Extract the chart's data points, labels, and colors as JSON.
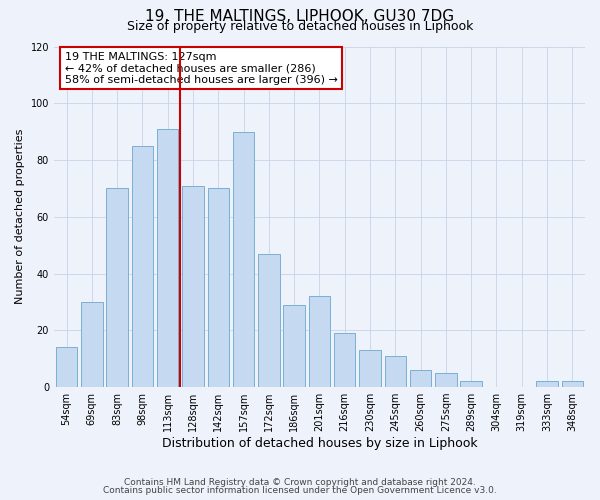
{
  "title": "19, THE MALTINGS, LIPHOOK, GU30 7DG",
  "subtitle": "Size of property relative to detached houses in Liphook",
  "xlabel": "Distribution of detached houses by size in Liphook",
  "ylabel": "Number of detached properties",
  "bar_labels": [
    "54sqm",
    "69sqm",
    "83sqm",
    "98sqm",
    "113sqm",
    "128sqm",
    "142sqm",
    "157sqm",
    "172sqm",
    "186sqm",
    "201sqm",
    "216sqm",
    "230sqm",
    "245sqm",
    "260sqm",
    "275sqm",
    "289sqm",
    "304sqm",
    "319sqm",
    "333sqm",
    "348sqm"
  ],
  "bar_values": [
    14,
    30,
    70,
    85,
    91,
    71,
    70,
    90,
    47,
    29,
    32,
    19,
    13,
    11,
    6,
    5,
    2,
    0,
    0,
    2,
    2
  ],
  "bar_color": "#c5d9f1",
  "bar_edge_color": "#7ab0d4",
  "vline_x_index": 5,
  "vline_color": "#cc0000",
  "ylim": [
    0,
    120
  ],
  "annotation_title": "19 THE MALTINGS: 127sqm",
  "annotation_line1": "← 42% of detached houses are smaller (286)",
  "annotation_line2": "58% of semi-detached houses are larger (396) →",
  "annotation_box_color": "#cc0000",
  "footer_line1": "Contains HM Land Registry data © Crown copyright and database right 2024.",
  "footer_line2": "Contains public sector information licensed under the Open Government Licence v3.0.",
  "background_color": "#eef2fb",
  "grid_color": "#c8d4e8",
  "title_fontsize": 11,
  "subtitle_fontsize": 9,
  "xlabel_fontsize": 9,
  "ylabel_fontsize": 8,
  "tick_fontsize": 7,
  "annotation_fontsize": 8,
  "footer_fontsize": 6.5
}
